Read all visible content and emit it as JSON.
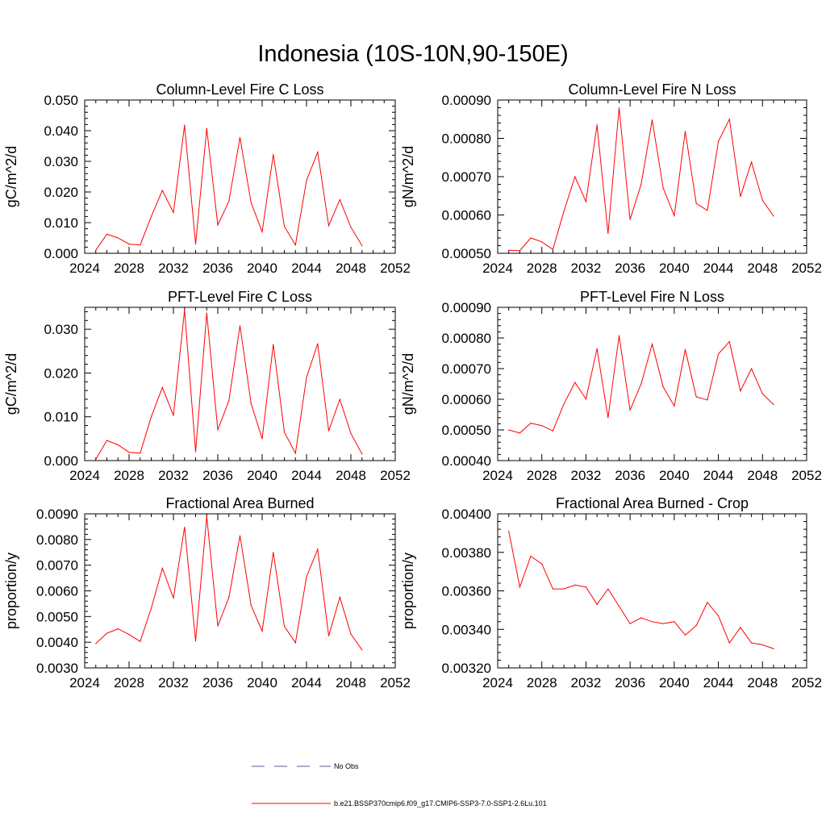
{
  "figure": {
    "title": "Indonesia (10S-10N,90-150E)",
    "series_color": "#ff0000",
    "obs_color": "#5a5aa0"
  },
  "legend": {
    "obs_label": "No Obs",
    "model_label": "b.e21.BSSP370cmip6.f09_g17.CMIP6-SSP3-7.0-SSP1-2.6Lu.101"
  },
  "chart_data": [
    {
      "type": "line",
      "title": "Column-Level Fire C Loss",
      "ylabel": "gC/m^2/d",
      "xlim": [
        2024,
        2052
      ],
      "xticks": [
        2024,
        2028,
        2032,
        2036,
        2040,
        2044,
        2048,
        2052
      ],
      "ylim": [
        0.0,
        0.05
      ],
      "yticks": [
        0.0,
        0.01,
        0.02,
        0.03,
        0.04,
        0.05
      ],
      "ytick_labels": [
        "0.000",
        "0.010",
        "0.020",
        "0.030",
        "0.040",
        "0.050"
      ],
      "x": [
        2025,
        2026,
        2027,
        2028,
        2029,
        2030,
        2031,
        2032,
        2033,
        2034,
        2035,
        2036,
        2037,
        2038,
        2039,
        2040,
        2041,
        2042,
        2043,
        2044,
        2045,
        2046,
        2047,
        2048,
        2049
      ],
      "series": [
        {
          "name": "b.e21.BSSP370cmip6.f09_g17.CMIP6-SSP3-7.0-SSP1-2.6Lu.101",
          "values": [
            0.001,
            0.0062,
            0.005,
            0.003,
            0.0027,
            0.012,
            0.0205,
            0.0133,
            0.0418,
            0.003,
            0.0407,
            0.0092,
            0.017,
            0.0378,
            0.0165,
            0.007,
            0.0322,
            0.0088,
            0.0027,
            0.0238,
            0.033,
            0.009,
            0.0175,
            0.0085,
            0.0025
          ]
        }
      ]
    },
    {
      "type": "line",
      "title": "Column-Level Fire N Loss",
      "ylabel": "gN/m^2/d",
      "xlim": [
        2024,
        2052
      ],
      "xticks": [
        2024,
        2028,
        2032,
        2036,
        2040,
        2044,
        2048,
        2052
      ],
      "ylim": [
        0.0005,
        0.0009
      ],
      "yticks": [
        0.0005,
        0.0006,
        0.0007,
        0.0008,
        0.0009
      ],
      "ytick_labels": [
        "0.00050",
        "0.00060",
        "0.00070",
        "0.00080",
        "0.00090"
      ],
      "x": [
        2025,
        2026,
        2027,
        2028,
        2029,
        2030,
        2031,
        2032,
        2033,
        2034,
        2035,
        2036,
        2037,
        2038,
        2039,
        2040,
        2041,
        2042,
        2043,
        2044,
        2045,
        2046,
        2047,
        2048,
        2049
      ],
      "series": [
        {
          "name": "b.e21.BSSP370cmip6.f09_g17.CMIP6-SSP3-7.0-SSP1-2.6Lu.101",
          "values": [
            0.000508,
            0.000507,
            0.00054,
            0.00053,
            0.00051,
            0.00061,
            0.0007,
            0.000635,
            0.000835,
            0.000552,
            0.00088,
            0.000588,
            0.00068,
            0.000848,
            0.00067,
            0.000598,
            0.000818,
            0.00063,
            0.000612,
            0.000792,
            0.00085,
            0.000648,
            0.000738,
            0.000638,
            0.000597
          ]
        }
      ]
    },
    {
      "type": "line",
      "title": "PFT-Level Fire C Loss",
      "ylabel": "gC/m^2/d",
      "xlim": [
        2024,
        2052
      ],
      "xticks": [
        2024,
        2028,
        2032,
        2036,
        2040,
        2044,
        2048,
        2052
      ],
      "ylim": [
        0.0,
        0.035
      ],
      "yticks": [
        0.0,
        0.01,
        0.02,
        0.03
      ],
      "ytick_labels": [
        "0.000",
        "0.010",
        "0.020",
        "0.030"
      ],
      "x": [
        2025,
        2026,
        2027,
        2028,
        2029,
        2030,
        2031,
        2032,
        2033,
        2034,
        2035,
        2036,
        2037,
        2038,
        2039,
        2040,
        2041,
        2042,
        2043,
        2044,
        2045,
        2046,
        2047,
        2048,
        2049
      ],
      "series": [
        {
          "name": "b.e21.BSSP370cmip6.f09_g17.CMIP6-SSP3-7.0-SSP1-2.6Lu.101",
          "values": [
            0.0003,
            0.0046,
            0.0036,
            0.0019,
            0.0017,
            0.01,
            0.0167,
            0.0103,
            0.0344,
            0.002,
            0.0337,
            0.007,
            0.0137,
            0.0308,
            0.013,
            0.005,
            0.0265,
            0.0065,
            0.0017,
            0.019,
            0.0267,
            0.0068,
            0.014,
            0.0062,
            0.0015
          ]
        }
      ]
    },
    {
      "type": "line",
      "title": "PFT-Level Fire N Loss",
      "ylabel": "gN/m^2/d",
      "xlim": [
        2024,
        2052
      ],
      "xticks": [
        2024,
        2028,
        2032,
        2036,
        2040,
        2044,
        2048,
        2052
      ],
      "ylim": [
        0.0004,
        0.0009
      ],
      "yticks": [
        0.0004,
        0.0005,
        0.0006,
        0.0007,
        0.0008,
        0.0009
      ],
      "ytick_labels": [
        "0.00040",
        "0.00050",
        "0.00060",
        "0.00070",
        "0.00080",
        "0.00090"
      ],
      "x": [
        2025,
        2026,
        2027,
        2028,
        2029,
        2030,
        2031,
        2032,
        2033,
        2034,
        2035,
        2036,
        2037,
        2038,
        2039,
        2040,
        2041,
        2042,
        2043,
        2044,
        2045,
        2046,
        2047,
        2048,
        2049
      ],
      "series": [
        {
          "name": "b.e21.BSSP370cmip6.f09_g17.CMIP6-SSP3-7.0-SSP1-2.6Lu.101",
          "values": [
            0.0005,
            0.00049,
            0.000522,
            0.000514,
            0.000497,
            0.000585,
            0.000655,
            0.000601,
            0.000765,
            0.00054,
            0.000808,
            0.000565,
            0.00065,
            0.00078,
            0.00064,
            0.000578,
            0.000762,
            0.000608,
            0.000598,
            0.000748,
            0.000788,
            0.000627,
            0.0007,
            0.000618,
            0.000583
          ]
        }
      ]
    },
    {
      "type": "line",
      "title": "Fractional Area Burned",
      "ylabel": "proportion/y",
      "xlim": [
        2024,
        2052
      ],
      "xticks": [
        2024,
        2028,
        2032,
        2036,
        2040,
        2044,
        2048,
        2052
      ],
      "ylim": [
        0.003,
        0.009
      ],
      "yticks": [
        0.003,
        0.004,
        0.005,
        0.006,
        0.007,
        0.008,
        0.009
      ],
      "ytick_labels": [
        "0.0030",
        "0.0040",
        "0.0050",
        "0.0060",
        "0.0070",
        "0.0080",
        "0.0090"
      ],
      "x": [
        2025,
        2026,
        2027,
        2028,
        2029,
        2030,
        2031,
        2032,
        2033,
        2034,
        2035,
        2036,
        2037,
        2038,
        2039,
        2040,
        2041,
        2042,
        2043,
        2044,
        2045,
        2046,
        2047,
        2048,
        2049
      ],
      "series": [
        {
          "name": "b.e21.BSSP370cmip6.f09_g17.CMIP6-SSP3-7.0-SSP1-2.6Lu.101",
          "values": [
            0.00395,
            0.00435,
            0.00452,
            0.0043,
            0.00403,
            0.00532,
            0.00688,
            0.00572,
            0.00848,
            0.00405,
            0.0089,
            0.00463,
            0.00575,
            0.00815,
            0.00543,
            0.00443,
            0.0075,
            0.00462,
            0.00398,
            0.00655,
            0.00762,
            0.00425,
            0.00575,
            0.00432,
            0.0037
          ]
        }
      ]
    },
    {
      "type": "line",
      "title": "Fractional Area Burned - Crop",
      "ylabel": "proportion/y",
      "xlim": [
        2024,
        2052
      ],
      "xticks": [
        2024,
        2028,
        2032,
        2036,
        2040,
        2044,
        2048,
        2052
      ],
      "ylim": [
        0.0032,
        0.004
      ],
      "yticks": [
        0.0032,
        0.0034,
        0.0036,
        0.0038,
        0.004
      ],
      "ytick_labels": [
        "0.00320",
        "0.00340",
        "0.00360",
        "0.00380",
        "0.00400"
      ],
      "x": [
        2025,
        2026,
        2027,
        2028,
        2029,
        2030,
        2031,
        2032,
        2033,
        2034,
        2035,
        2036,
        2037,
        2038,
        2039,
        2040,
        2041,
        2042,
        2043,
        2044,
        2045,
        2046,
        2047,
        2048,
        2049
      ],
      "series": [
        {
          "name": "b.e21.BSSP370cmip6.f09_g17.CMIP6-SSP3-7.0-SSP1-2.6Lu.101",
          "values": [
            0.00391,
            0.00362,
            0.00378,
            0.00374,
            0.00361,
            0.00361,
            0.00363,
            0.00362,
            0.00353,
            0.00361,
            0.00352,
            0.00343,
            0.00346,
            0.00344,
            0.00343,
            0.00344,
            0.00337,
            0.00342,
            0.00354,
            0.00347,
            0.00333,
            0.00341,
            0.00333,
            0.00332,
            0.0033
          ]
        }
      ]
    }
  ]
}
